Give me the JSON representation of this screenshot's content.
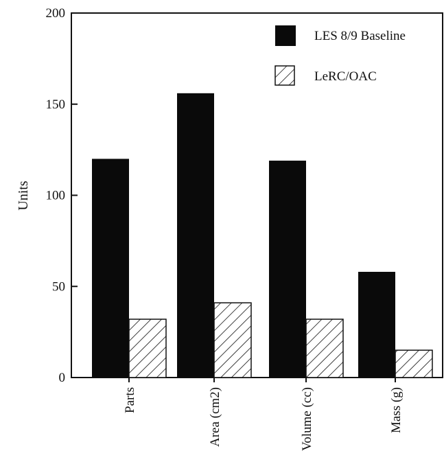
{
  "chart_data": {
    "type": "bar",
    "title": "",
    "xlabel": "",
    "ylabel": "Units",
    "ylim": [
      0,
      200
    ],
    "yticks": [
      "0",
      "50",
      "100",
      "150",
      "200"
    ],
    "categories": [
      "Parts",
      "Area (cm2)",
      "Volume (cc)",
      "Mass (g)"
    ],
    "series": [
      {
        "name": "LES 8/9 Baseline",
        "values": [
          120,
          156,
          119,
          58
        ],
        "fill": "solid",
        "color": "#0a0a0a"
      },
      {
        "name": "LeRC/OAC",
        "values": [
          32,
          41,
          32,
          15
        ],
        "fill": "hatched",
        "color": "#ffffff"
      }
    ],
    "grid": false,
    "legend_position": "top-right"
  }
}
